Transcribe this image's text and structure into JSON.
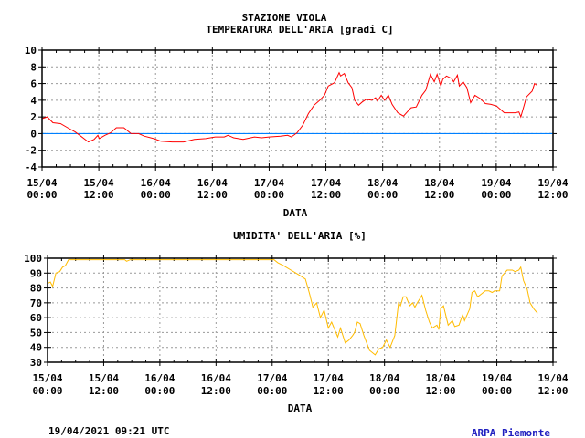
{
  "header": {
    "station": "STAZIONE VIOLA"
  },
  "footer": {
    "timestamp": "19/04/2021 09:21 UTC",
    "brand": "ARPA Piemonte",
    "brand_color": "#2020c0"
  },
  "chart_data": [
    {
      "type": "line",
      "title": "TEMPERATURA DELL'ARIA [gradi C]",
      "xlabel": "DATA",
      "ylabel": "",
      "x_unit": "hours since 15/04 00:00",
      "xlim": [
        0,
        108
      ],
      "ylim": [
        -4,
        10
      ],
      "yticks": [
        -4,
        -2,
        0,
        2,
        4,
        6,
        8,
        10
      ],
      "ytick_labels": [
        "-4",
        "-2",
        "0",
        "2",
        "4",
        "6",
        "8",
        "10"
      ],
      "xtick_labels": [
        [
          "15/04",
          "00:00"
        ],
        [
          "15/04",
          "12:00"
        ],
        [
          "16/04",
          "00:00"
        ],
        [
          "16/04",
          "12:00"
        ],
        [
          "17/04",
          "00:00"
        ],
        [
          "17/04",
          "12:00"
        ],
        [
          "18/04",
          "00:00"
        ],
        [
          "18/04",
          "12:00"
        ],
        [
          "19/04",
          "00:00"
        ],
        [
          "19/04",
          "12:00"
        ]
      ],
      "grid": true,
      "reference_line": {
        "y": 0,
        "color": "#0080ff"
      },
      "series": [
        {
          "name": "Temperatura",
          "color": "#ff0000",
          "x": [
            0,
            1.1,
            2.3,
            3.9,
            5.4,
            7.0,
            8.2,
            9.8,
            11.0,
            11.8,
            12.1,
            13.3,
            14.5,
            15.7,
            17.3,
            18.8,
            20.4,
            21.6,
            23.6,
            25.1,
            27.5,
            29.9,
            32.2,
            34.6,
            36.6,
            38.5,
            39.3,
            40.5,
            42.5,
            44.9,
            46.4,
            48.0,
            50.4,
            51.9,
            52.7,
            53.9,
            55.1,
            56.3,
            57.5,
            58.7,
            59.7,
            60.5,
            61.8,
            62.8,
            63.1,
            63.9,
            64.7,
            65.5,
            66.1,
            66.9,
            67.7,
            68.5,
            69.7,
            70.5,
            70.9,
            71.7,
            72.4,
            73.2,
            74.0,
            75.2,
            76.4,
            78.0,
            79.1,
            80.3,
            81.1,
            82.1,
            82.9,
            83.5,
            84.3,
            84.7,
            85.5,
            86.6,
            87.0,
            87.8,
            88.2,
            89.0,
            89.8,
            90.6,
            91.5,
            92.6,
            93.7,
            94.9,
            96.1,
            97.7,
            100.0,
            100.8,
            101.2,
            102.4,
            103.6,
            104.1,
            104.6
          ],
          "y": [
            1.8,
            2.0,
            1.3,
            1.2,
            0.7,
            0.2,
            -0.3,
            -1.0,
            -0.7,
            -0.2,
            -0.6,
            -0.2,
            0.1,
            0.7,
            0.7,
            0.0,
            0.0,
            -0.3,
            -0.6,
            -0.9,
            -1.0,
            -1.0,
            -0.7,
            -0.6,
            -0.4,
            -0.4,
            -0.2,
            -0.5,
            -0.7,
            -0.4,
            -0.5,
            -0.4,
            -0.3,
            -0.2,
            -0.4,
            0.1,
            1.0,
            2.4,
            3.4,
            4.0,
            4.6,
            5.7,
            6.1,
            7.3,
            6.9,
            7.2,
            6.1,
            5.5,
            4.0,
            3.4,
            3.8,
            4.1,
            4.0,
            4.3,
            3.9,
            4.6,
            4.0,
            4.6,
            3.5,
            2.5,
            2.1,
            3.1,
            3.2,
            4.6,
            5.2,
            7.1,
            6.2,
            7.1,
            5.7,
            6.5,
            6.9,
            6.6,
            6.2,
            7.0,
            5.7,
            6.2,
            5.5,
            3.7,
            4.6,
            4.2,
            3.6,
            3.5,
            3.3,
            2.5,
            2.5,
            2.6,
            2.0,
            4.4,
            5.1,
            6.0,
            5.8
          ]
        }
      ]
    },
    {
      "type": "line",
      "title": "UMIDITA' DELL'ARIA [%]",
      "xlabel": "DATA",
      "ylabel": "",
      "x_unit": "hours since 15/04 00:00",
      "xlim": [
        0,
        108
      ],
      "ylim": [
        30,
        100
      ],
      "yticks": [
        30,
        40,
        50,
        60,
        70,
        80,
        90,
        100
      ],
      "ytick_labels": [
        "30",
        "40",
        "50",
        "60",
        "70",
        "80",
        "90",
        "100"
      ],
      "xtick_labels": [
        [
          "15/04",
          "00:00"
        ],
        [
          "15/04",
          "12:00"
        ],
        [
          "16/04",
          "00:00"
        ],
        [
          "16/04",
          "12:00"
        ],
        [
          "17/04",
          "00:00"
        ],
        [
          "17/04",
          "12:00"
        ],
        [
          "18/04",
          "00:00"
        ],
        [
          "18/04",
          "12:00"
        ],
        [
          "19/04",
          "00:00"
        ],
        [
          "19/04",
          "12:00"
        ]
      ],
      "grid": true,
      "series": [
        {
          "name": "Umidita",
          "color": "#ffbb00",
          "x": [
            0,
            0.6,
            1.1,
            1.8,
            2.6,
            3.2,
            3.8,
            4.5,
            16.5,
            16.9,
            17.7,
            48.4,
            49.2,
            50.4,
            52.0,
            53.6,
            55.1,
            56.0,
            56.7,
            57.5,
            58.3,
            59.1,
            60.0,
            60.7,
            62.0,
            62.6,
            63.6,
            64.4,
            65.2,
            65.6,
            66.2,
            66.8,
            67.6,
            68.8,
            70.0,
            70.8,
            71.6,
            72.4,
            73.2,
            74.2,
            75.0,
            75.4,
            76.0,
            76.6,
            77.4,
            78.0,
            78.5,
            79.0,
            80.0,
            80.8,
            81.6,
            82.2,
            83.2,
            83.6,
            84.0,
            84.6,
            85.6,
            86.5,
            87.0,
            87.9,
            88.7,
            89.1,
            90.2,
            90.7,
            91.3,
            91.9,
            92.7,
            93.5,
            94.3,
            95.0,
            95.5,
            96.6,
            97.1,
            98.2,
            99.3,
            99.9,
            100.7,
            101.1,
            101.7,
            102.5,
            103.1,
            103.9,
            104.7
          ],
          "y": [
            83,
            84,
            81,
            90,
            91,
            94,
            95,
            99,
            99,
            98,
            99,
            99,
            97,
            95,
            92,
            89,
            86,
            76,
            67,
            70,
            60,
            65,
            53,
            57,
            47,
            53,
            43,
            45,
            48,
            50,
            57,
            56,
            48,
            38,
            35,
            39,
            40,
            45,
            40,
            48,
            70,
            68,
            74,
            74,
            68,
            70,
            67,
            70,
            75,
            65,
            57,
            53,
            55,
            52,
            66,
            68,
            55,
            58,
            54,
            55,
            62,
            58,
            66,
            77,
            78,
            74,
            76,
            78,
            78,
            77,
            78,
            78,
            88,
            92,
            92,
            91,
            92,
            94,
            85,
            79,
            70,
            66,
            63
          ]
        }
      ]
    }
  ]
}
